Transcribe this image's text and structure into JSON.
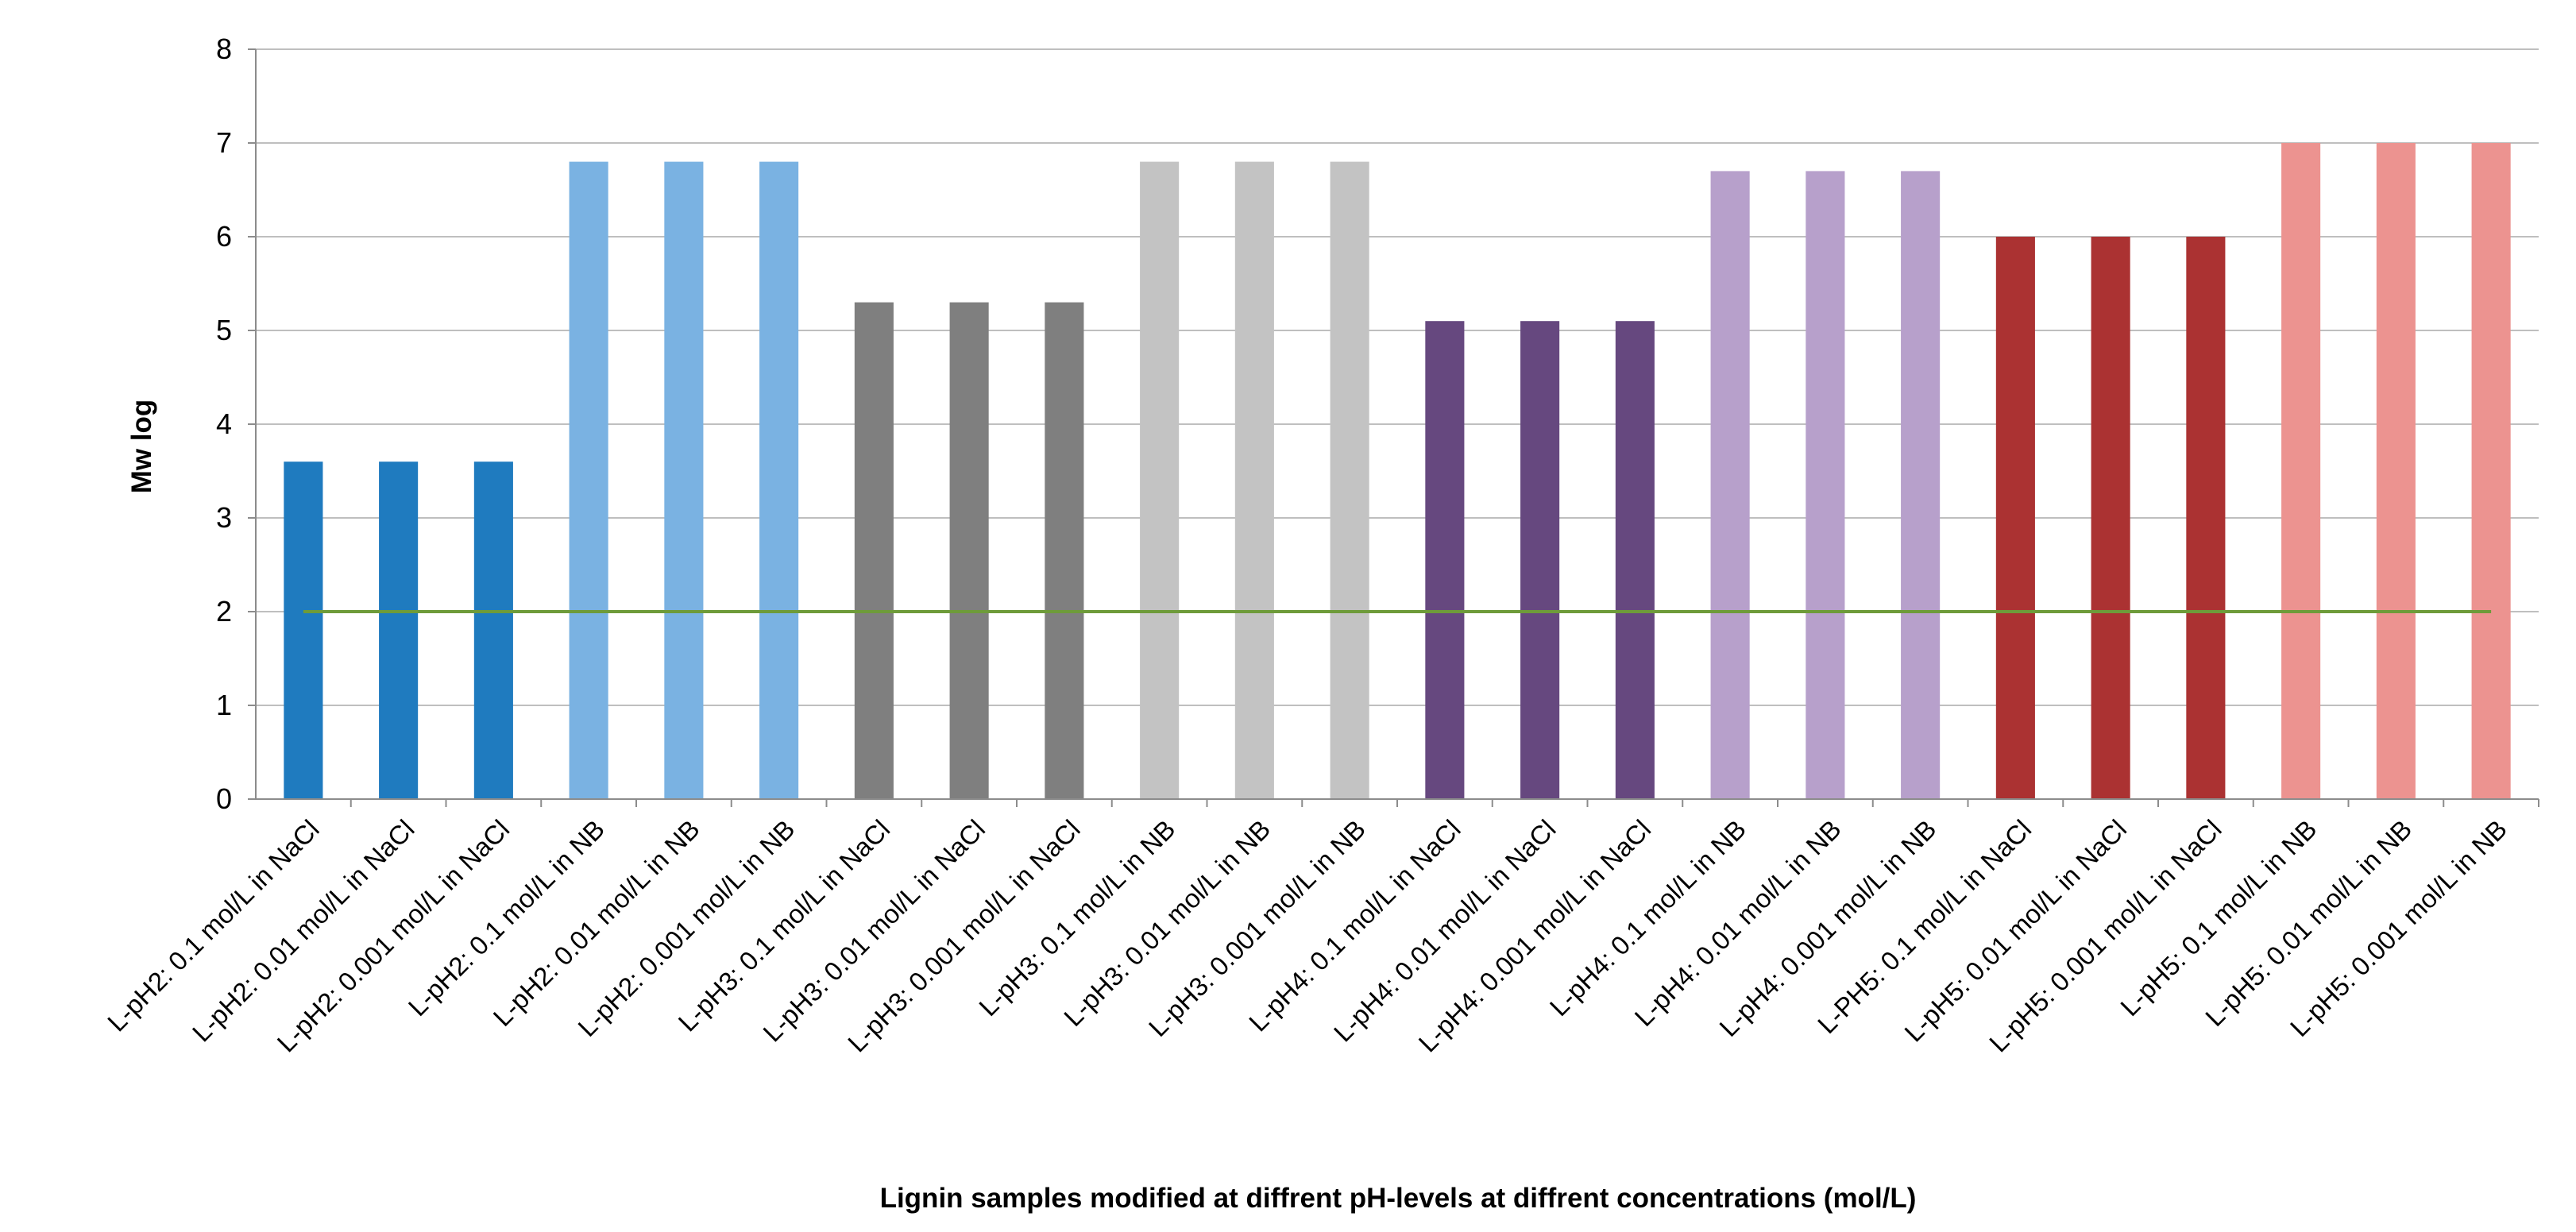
{
  "chart_data": {
    "type": "bar",
    "title": "",
    "xlabel": "Lignin samples modified at diffrent pH-levels at diffrent concentrations (mol/L)",
    "ylabel": "Mw log",
    "ylim": [
      0,
      8
    ],
    "yticks": [
      0,
      1,
      2,
      3,
      4,
      5,
      6,
      7,
      8
    ],
    "grid": true,
    "legend": "none",
    "categories": [
      "L-pH2: 0.1 mol/L in NaCl",
      "L-pH2: 0.01 mol/L in NaCl",
      "L-pH2: 0.001 mol/L in NaCl",
      "L-pH2: 0.1 mol/L in NB",
      "L-pH2: 0.01 mol/L in NB",
      "L-pH2: 0.001 mol/L in NB",
      "L-pH3: 0.1 mol/L in NaCl",
      "L-pH3: 0.01 mol/L in NaCl",
      "L-pH3: 0.001 mol/L in NaCl",
      "L-pH3: 0.1 mol/L in NB",
      "L-pH3: 0.01 mol/L in NB",
      "L-pH3: 0.001 mol/L in NB",
      "L-pH4: 0.1 mol/L in NaCl",
      "L-pH4: 0.01 mol/L in NaCl",
      "L-pH4: 0.001 mol/L in NaCl",
      "L-pH4: 0.1 mol/L in NB",
      "L-pH4: 0.01 mol/L in NB",
      "L-pH4: 0.001 mol/L in NB",
      "L-PH5: 0.1 mol/L in NaCl",
      "L-pH5: 0.01 mol/L in NaCl",
      "L-pH5: 0.001 mol/L in NaCl",
      "L-pH5: 0.1 mol/L in NB",
      "L-pH5: 0.01 mol/L in NB",
      "L-pH5: 0.001 mol/L in NB"
    ],
    "values": [
      3.6,
      3.6,
      3.6,
      6.8,
      6.8,
      6.8,
      5.3,
      5.3,
      5.3,
      6.8,
      6.8,
      6.8,
      5.1,
      5.1,
      5.1,
      6.7,
      6.7,
      6.7,
      6.0,
      6.0,
      6.0,
      7.0,
      7.0,
      7.0
    ],
    "bar_colors": [
      "#1f7bbf",
      "#1f7bbf",
      "#1f7bbf",
      "#7ab2e2",
      "#7ab2e2",
      "#7ab2e2",
      "#7f7f7f",
      "#7f7f7f",
      "#7f7f7f",
      "#c3c3c3",
      "#c3c3c3",
      "#c3c3c3",
      "#66487f",
      "#66487f",
      "#66487f",
      "#b7a0cb",
      "#b7a0cb",
      "#b7a0cb",
      "#ab3232",
      "#ab3232",
      "#ab3232",
      "#ec9390",
      "#ec9390",
      "#ec9390"
    ],
    "reference_line": {
      "y": 2,
      "color": "#6e9b3a"
    },
    "grid_color": "#bfbfbf",
    "axis_color": "#8c8c8c"
  }
}
